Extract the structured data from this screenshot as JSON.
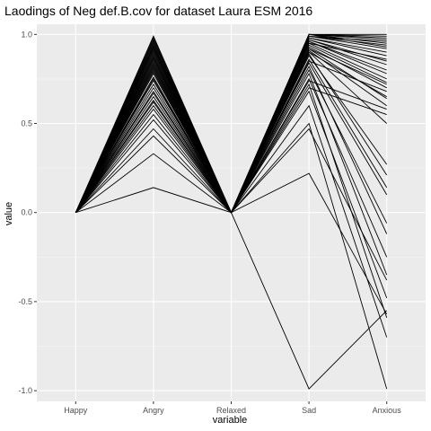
{
  "chart_data": {
    "type": "line",
    "title": "Laodings of Neg def.B.cov for dataset Laura ESM 2016",
    "xlabel": "variable",
    "ylabel": "value",
    "categories": [
      "Happy",
      "Angry",
      "Relaxed",
      "Sad",
      "Anxious"
    ],
    "ylim": [
      -1.06,
      1.0
    ],
    "yticks": [
      -1.0,
      -0.5,
      0.0,
      0.5,
      1.0
    ],
    "ytick_labels": [
      "-1.0",
      "-0.5",
      "0.0",
      "0.5",
      "1.0"
    ],
    "grid": true,
    "legend": "none",
    "colors": {
      "panel": "#ebebeb",
      "line": "#000000",
      "grid": "#ffffff"
    },
    "series": [
      {
        "values": [
          0,
          0.14,
          0,
          0.22,
          -0.57
        ]
      },
      {
        "values": [
          0,
          0.33,
          0,
          -0.99,
          -0.55
        ]
      },
      {
        "values": [
          0,
          0.43,
          0,
          0.47,
          -0.38
        ]
      },
      {
        "values": [
          0,
          0.47,
          0,
          0.5,
          -0.99
        ]
      },
      {
        "values": [
          0,
          0.52,
          0,
          0.6,
          -0.7
        ]
      },
      {
        "values": [
          0,
          0.55,
          0,
          0.68,
          -0.48
        ]
      },
      {
        "values": [
          0,
          0.58,
          0,
          0.72,
          -0.59
        ]
      },
      {
        "values": [
          0,
          0.6,
          0,
          0.75,
          -0.25
        ]
      },
      {
        "values": [
          0,
          0.63,
          0,
          0.78,
          -0.35
        ]
      },
      {
        "values": [
          0,
          0.65,
          0,
          0.8,
          -0.06
        ]
      },
      {
        "values": [
          0,
          0.68,
          0,
          0.82,
          -0.12
        ]
      },
      {
        "values": [
          0,
          0.7,
          0,
          0.84,
          0.1
        ]
      },
      {
        "values": [
          0,
          0.72,
          0,
          0.86,
          0.14
        ]
      },
      {
        "values": [
          0,
          0.74,
          0,
          0.88,
          0.27
        ]
      },
      {
        "values": [
          0,
          0.76,
          0,
          0.89,
          0.21
        ]
      },
      {
        "values": [
          0,
          0.78,
          0,
          0.9,
          0.5
        ]
      },
      {
        "values": [
          0,
          0.79,
          0,
          0.91,
          0.6
        ]
      },
      {
        "values": [
          0,
          0.8,
          0,
          0.92,
          0.64
        ]
      },
      {
        "values": [
          0,
          0.82,
          0,
          0.93,
          0.7
        ]
      },
      {
        "values": [
          0,
          0.83,
          0,
          0.94,
          0.73
        ]
      },
      {
        "values": [
          0,
          0.84,
          0,
          0.95,
          0.75
        ]
      },
      {
        "values": [
          0,
          0.85,
          0,
          0.96,
          0.78
        ]
      },
      {
        "values": [
          0,
          0.86,
          0,
          0.96,
          0.8
        ]
      },
      {
        "values": [
          0,
          0.87,
          0,
          0.97,
          0.83
        ]
      },
      {
        "values": [
          0,
          0.88,
          0,
          0.97,
          0.85
        ]
      },
      {
        "values": [
          0,
          0.89,
          0,
          0.98,
          0.88
        ]
      },
      {
        "values": [
          0,
          0.9,
          0,
          0.98,
          0.9
        ]
      },
      {
        "values": [
          0,
          0.91,
          0,
          0.99,
          0.92
        ]
      },
      {
        "values": [
          0,
          0.92,
          0,
          0.99,
          0.94
        ]
      },
      {
        "values": [
          0,
          0.93,
          0,
          0.99,
          0.96
        ]
      },
      {
        "values": [
          0,
          0.94,
          0,
          1.0,
          0.98
        ]
      },
      {
        "values": [
          0,
          0.95,
          0,
          1.0,
          1.0
        ]
      },
      {
        "values": [
          0,
          0.96,
          0,
          1.0,
          0.99
        ]
      },
      {
        "values": [
          0,
          0.97,
          0,
          1.0,
          0.97
        ]
      },
      {
        "values": [
          0,
          0.98,
          0,
          1.0,
          0.95
        ]
      },
      {
        "values": [
          0,
          0.99,
          0,
          1.0,
          0.93
        ]
      },
      {
        "values": [
          0,
          0.87,
          0,
          0.7,
          0.55
        ]
      },
      {
        "values": [
          0,
          0.62,
          0,
          0.9,
          0.65
        ]
      },
      {
        "values": [
          0,
          0.75,
          0,
          0.85,
          0.68
        ]
      },
      {
        "values": [
          0,
          0.67,
          0,
          0.95,
          0.86
        ]
      },
      {
        "values": [
          0,
          0.81,
          0,
          0.92,
          0.72
        ]
      },
      {
        "values": [
          0,
          0.93,
          0,
          0.74,
          0.58
        ]
      }
    ]
  }
}
